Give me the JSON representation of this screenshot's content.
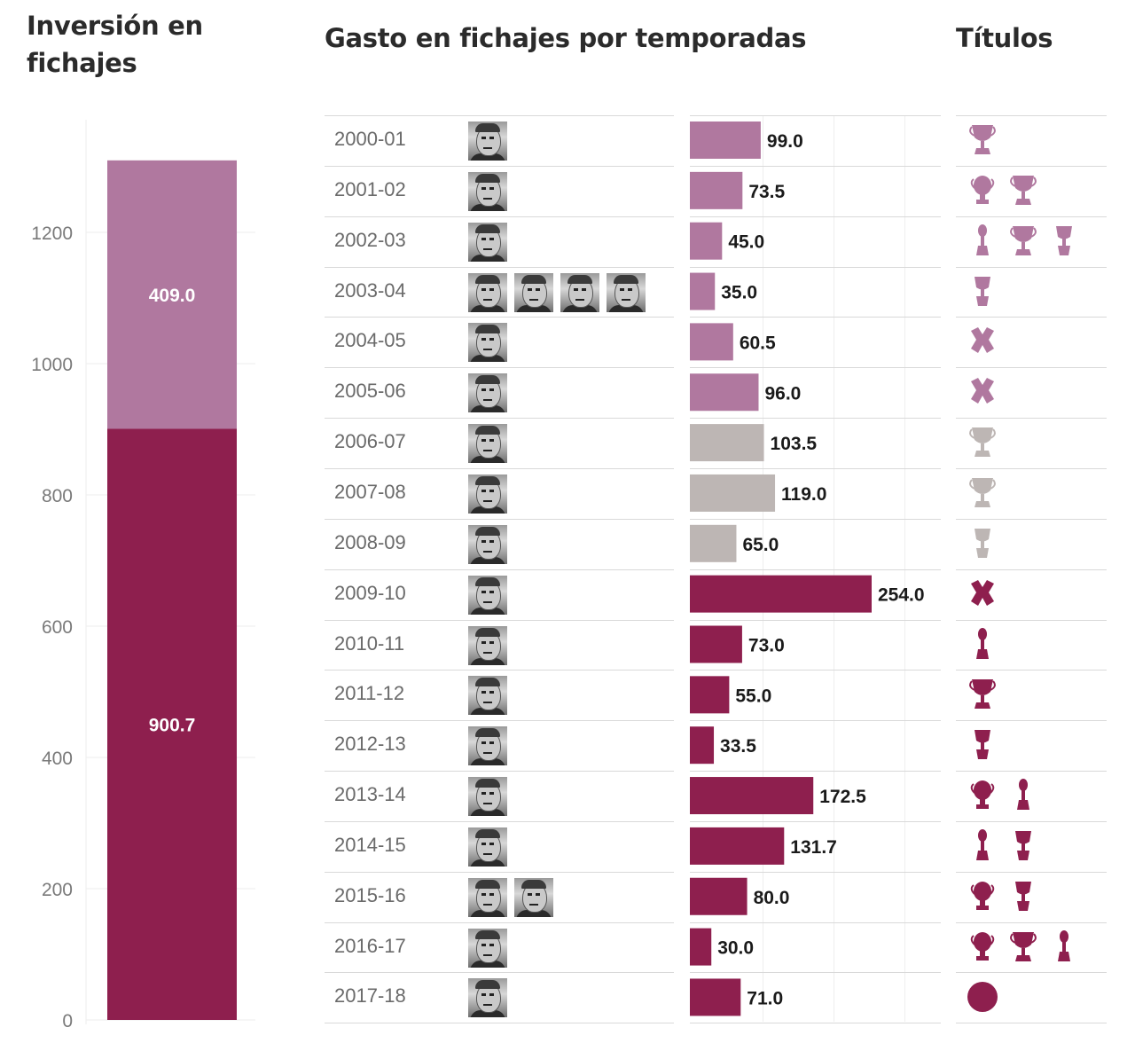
{
  "headings": {
    "left": "Inversión en fichajes",
    "middle": "Gasto en fichajes por temporadas",
    "right": "Títulos"
  },
  "colors": {
    "early": "#b0789f",
    "grey": "#bdb6b4",
    "recent": "#8e1f4e",
    "grid": "#eeeeee",
    "axis_text": "#7a7a7a"
  },
  "chart_data": [
    {
      "type": "bar",
      "stacked": true,
      "title": "Inversión en fichajes",
      "ylim": [
        0,
        1300
      ],
      "yticks": [
        0,
        200,
        400,
        600,
        800,
        1000,
        1200
      ],
      "grid": true,
      "series": [
        {
          "values": [
            900.7
          ],
          "color": "#8e1f4e"
        },
        {
          "values": [
            409.0
          ],
          "color": "#b0789f"
        }
      ]
    },
    {
      "type": "bar",
      "orientation": "horizontal",
      "title": "Gasto en fichajes por temporadas",
      "xlim": [
        0,
        350
      ],
      "grid": true,
      "categories": [
        "2000-01",
        "2001-02",
        "2002-03",
        "2003-04",
        "2004-05",
        "2005-06",
        "2006-07",
        "2007-08",
        "2008-09",
        "2009-10",
        "2010-11",
        "2011-12",
        "2012-13",
        "2013-14",
        "2014-15",
        "2015-16",
        "2016-17",
        "2017-18"
      ],
      "values": [
        99.0,
        73.5,
        45.0,
        35.0,
        60.5,
        96.0,
        103.5,
        119.0,
        65.0,
        254.0,
        73.0,
        55.0,
        33.5,
        172.5,
        131.7,
        80.0,
        30.0,
        71.0
      ],
      "value_labels": [
        "99.0",
        "73.5",
        "45.0",
        "35.0",
        "60.5",
        "96.0",
        "103.5",
        "119.0",
        "65.0",
        "254.0",
        "73.0",
        "55.0",
        "33.5",
        "172.5",
        "131.7",
        "80.0",
        "30.0",
        "71.0"
      ],
      "bar_colors": [
        "#b0789f",
        "#b0789f",
        "#b0789f",
        "#b0789f",
        "#b0789f",
        "#b0789f",
        "#bdb6b4",
        "#bdb6b4",
        "#bdb6b4",
        "#8e1f4e",
        "#8e1f4e",
        "#8e1f4e",
        "#8e1f4e",
        "#8e1f4e",
        "#8e1f4e",
        "#8e1f4e",
        "#8e1f4e",
        "#8e1f4e"
      ],
      "coach_photo_counts": [
        1,
        1,
        1,
        4,
        1,
        1,
        1,
        1,
        1,
        1,
        1,
        1,
        1,
        1,
        1,
        2,
        1,
        1
      ]
    }
  ],
  "titles_column": [
    {
      "icons": [
        "cup-wide"
      ],
      "color": "#b0789f"
    },
    {
      "icons": [
        "cup-round",
        "cup-wide"
      ],
      "color": "#b0789f"
    },
    {
      "icons": [
        "cup-slim",
        "cup-wide",
        "cup-tall"
      ],
      "color": "#b0789f"
    },
    {
      "icons": [
        "cup-tall"
      ],
      "color": "#b0789f"
    },
    {
      "icons": [
        "cross"
      ],
      "color": "#b0789f"
    },
    {
      "icons": [
        "cross"
      ],
      "color": "#b0789f"
    },
    {
      "icons": [
        "cup-wide"
      ],
      "color": "#bdb6b4"
    },
    {
      "icons": [
        "cup-wide"
      ],
      "color": "#bdb6b4"
    },
    {
      "icons": [
        "cup-tall"
      ],
      "color": "#bdb6b4"
    },
    {
      "icons": [
        "cross"
      ],
      "color": "#8e1f4e"
    },
    {
      "icons": [
        "cup-slim"
      ],
      "color": "#8e1f4e"
    },
    {
      "icons": [
        "cup-wide"
      ],
      "color": "#8e1f4e"
    },
    {
      "icons": [
        "cup-tall"
      ],
      "color": "#8e1f4e"
    },
    {
      "icons": [
        "cup-round",
        "cup-slim"
      ],
      "color": "#8e1f4e"
    },
    {
      "icons": [
        "cup-slim",
        "cup-tall"
      ],
      "color": "#8e1f4e"
    },
    {
      "icons": [
        "cup-round",
        "cup-tall"
      ],
      "color": "#8e1f4e"
    },
    {
      "icons": [
        "cup-round",
        "cup-wide",
        "cup-slim"
      ],
      "color": "#8e1f4e"
    },
    {
      "icons": [
        "circle"
      ],
      "color": "#8e1f4e"
    }
  ]
}
